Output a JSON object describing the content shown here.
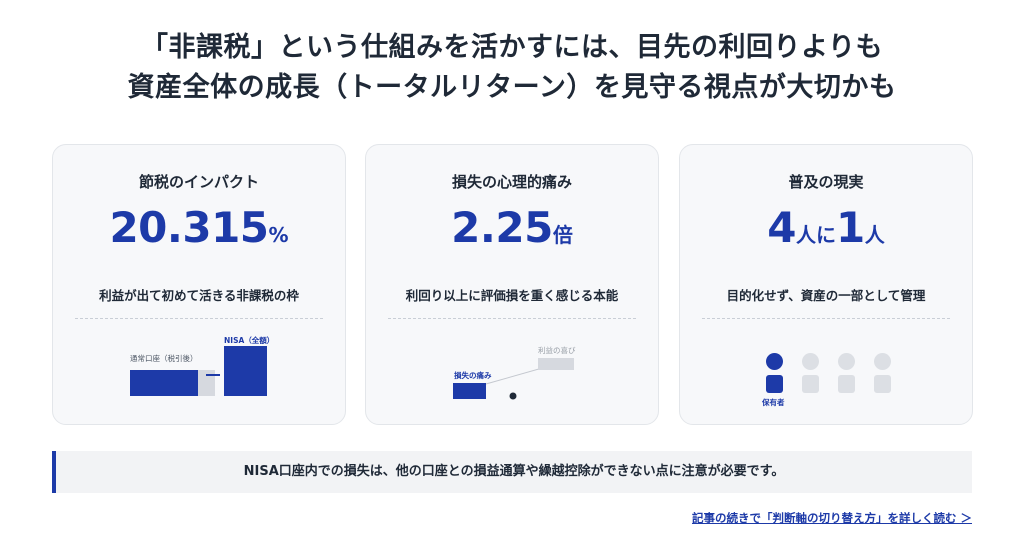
{
  "headline": {
    "line1": "「非課税」という仕組みを活かすには、目先の利回りよりも",
    "line2": "資産全体の成長（トータルリターン）を見守る視点が大切かも"
  },
  "cards": [
    {
      "title": "節税のインパクト",
      "number": "20.315",
      "unit": "%",
      "desc": "利益が出て初めて活きる非課税の枠",
      "visual": {
        "label_normal": "通常口座（税引後）",
        "label_nisa": "NISA（全額）"
      }
    },
    {
      "title": "損失の心理的痛み",
      "number": "2.25",
      "unit": "倍",
      "desc": "利回り以上に評価損を重く感じる本能",
      "visual": {
        "label_gain": "利益の喜び",
        "label_pain": "損失の痛み"
      }
    },
    {
      "title": "普及の現実",
      "number_a": "4",
      "unit_a": "人に",
      "number_b": "1",
      "unit_b": "人",
      "desc": "目的化せず、資産の一部として管理",
      "visual": {
        "label_holder": "保有者",
        "people_total": 4,
        "people_highlighted": 1
      }
    }
  ],
  "note": "NISA口座内での損失は、他の口座との損益通算や繰越控除ができない点に注意が必要です。",
  "link": "記事の続きで「判断軸の切り替え方」を詳しく読む ＞",
  "colors": {
    "accent": "#1d3aa8",
    "muted": "#d6d9df",
    "text": "#1f2937"
  }
}
